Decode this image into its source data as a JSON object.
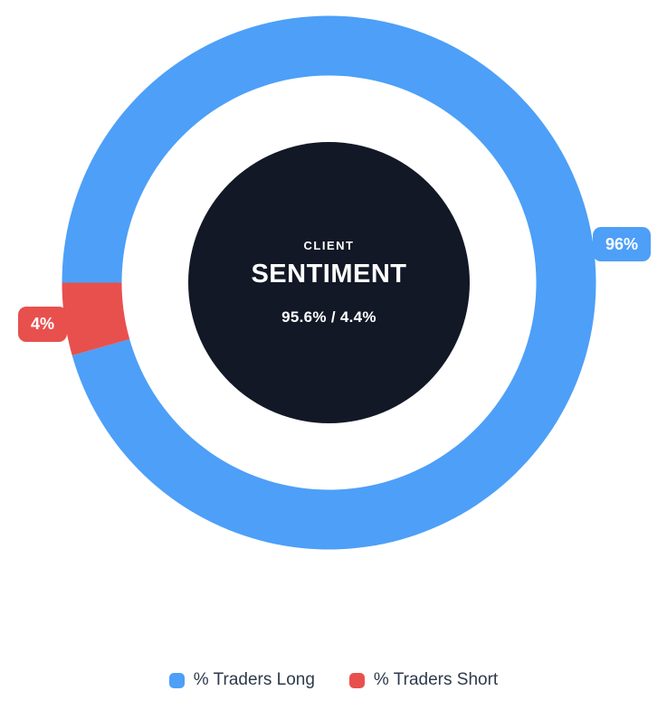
{
  "chart_data": {
    "type": "pie",
    "subtype": "donut",
    "title": "CLIENT SENTIMENT",
    "series": [
      {
        "name": "% Traders Long",
        "value": 95.6,
        "display_label": "96%",
        "color": "#4D9FF8"
      },
      {
        "name": "% Traders Short",
        "value": 4.4,
        "display_label": "4%",
        "color": "#E8504E"
      }
    ],
    "start_angle_deg": 270,
    "direction": "clockwise",
    "legend_position": "bottom"
  },
  "center": {
    "kicker": "CLIENT",
    "title": "SENTIMENT",
    "ratio": "95.6% / 4.4%"
  },
  "colors": {
    "center_bg": "#121826",
    "background": "#ffffff",
    "legend_text": "#2e3a4b"
  }
}
